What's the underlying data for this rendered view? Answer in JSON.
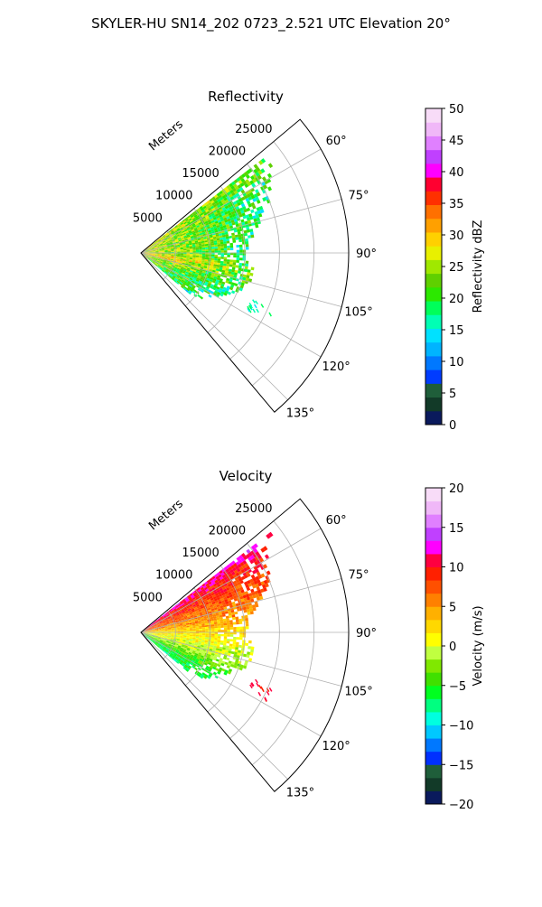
{
  "figure": {
    "suptitle": "SKYLER-HU  SN14_202  0723_2.521 UTC Elevation 20°"
  },
  "chart_data": [
    {
      "type": "heatmap",
      "subtype": "polar-sector",
      "title": "Reflectivity",
      "range_label": "Meters",
      "range_ticks": [
        5000,
        10000,
        15000,
        20000,
        25000
      ],
      "range_tick_labels": [
        "5000",
        "10000",
        "15000",
        "20000",
        "25000"
      ],
      "rlim": [
        0,
        30000
      ],
      "theta_range_deg": [
        50,
        140
      ],
      "theta_ticks_deg": [
        60,
        75,
        90,
        105,
        120,
        135
      ],
      "theta_tick_labels": [
        "60°",
        "75°",
        "90°",
        "105°",
        "120°",
        "135°"
      ],
      "grid": true,
      "colorbar": {
        "label": "Reflectivity dBZ",
        "min": 0,
        "max": 50,
        "ticks": [
          0,
          5,
          10,
          15,
          20,
          25,
          30,
          35,
          40,
          45,
          50
        ],
        "tick_labels": [
          "0",
          "5",
          "10",
          "15",
          "20",
          "25",
          "30",
          "35",
          "40",
          "45",
          "50"
        ],
        "colors": [
          "#0a1a5c",
          "#123a28",
          "#1f5e3a",
          "#003cff",
          "#0078ff",
          "#00b4ff",
          "#00e1ff",
          "#00ffb4",
          "#00ff5a",
          "#2ce800",
          "#5fd000",
          "#a0e800",
          "#e8f000",
          "#ffd000",
          "#ffa000",
          "#ff7000",
          "#ff3000",
          "#ff0030",
          "#ff00ff",
          "#c040ff",
          "#e080ff",
          "#f0b8f8",
          "#f8dcf8"
        ]
      },
      "returns": [
        {
          "az": 53,
          "r0": 0,
          "r1": 23500,
          "typical": 20
        },
        {
          "az": 57,
          "r0": 0,
          "r1": 22000,
          "typical": 19
        },
        {
          "az": 62,
          "r0": 0,
          "r1": 21000,
          "typical": 18
        },
        {
          "az": 70,
          "r0": 0,
          "r1": 19500,
          "typical": 18
        },
        {
          "az": 80,
          "r0": 0,
          "r1": 16500,
          "typical": 19
        },
        {
          "az": 90,
          "r0": 0,
          "r1": 15000,
          "typical": 18
        },
        {
          "az": 100,
          "r0": 0,
          "r1": 16500,
          "typical": 22
        },
        {
          "az": 110,
          "r0": 0,
          "r1": 15500,
          "typical": 18
        },
        {
          "az": 118,
          "r0": 0,
          "r1": 13000,
          "typical": 17
        },
        {
          "az": 125,
          "r0": 0,
          "r1": 11500,
          "typical": 17
        },
        {
          "az": 130,
          "r0": 0,
          "r1": 9000,
          "typical": 16
        }
      ]
    },
    {
      "type": "heatmap",
      "subtype": "polar-sector",
      "title": "Velocity",
      "range_label": "Meters",
      "range_ticks": [
        5000,
        10000,
        15000,
        20000,
        25000
      ],
      "range_tick_labels": [
        "5000",
        "10000",
        "15000",
        "20000",
        "25000"
      ],
      "rlim": [
        0,
        30000
      ],
      "theta_range_deg": [
        50,
        140
      ],
      "theta_ticks_deg": [
        60,
        75,
        90,
        105,
        120,
        135
      ],
      "theta_tick_labels": [
        "60°",
        "75°",
        "90°",
        "105°",
        "120°",
        "135°"
      ],
      "grid": true,
      "colorbar": {
        "label": "Velocity (m/s)",
        "min": -20,
        "max": 20,
        "ticks": [
          -20,
          -15,
          -10,
          -5,
          0,
          5,
          10,
          15,
          20
        ],
        "tick_labels": [
          "−20",
          "−15",
          "−10",
          "−5",
          "0",
          "5",
          "10",
          "15",
          "20"
        ],
        "colors": [
          "#0a1a5c",
          "#123a28",
          "#1f5e3a",
          "#0030ff",
          "#0078ff",
          "#00c8ff",
          "#00ffe0",
          "#00ff80",
          "#00ff20",
          "#40e000",
          "#80e800",
          "#c0ff40",
          "#ffff00",
          "#ffd800",
          "#ffb000",
          "#ff8000",
          "#ff5000",
          "#ff2000",
          "#ff0040",
          "#ff00ff",
          "#c040ff",
          "#e080ff",
          "#f0b8f8",
          "#f8dcf8"
        ]
      },
      "returns": [
        {
          "az": 53,
          "r0": 0,
          "r1": 23500,
          "typical": 12
        },
        {
          "az": 57,
          "r0": 0,
          "r1": 22000,
          "typical": 10
        },
        {
          "az": 62,
          "r0": 0,
          "r1": 21000,
          "typical": 9
        },
        {
          "az": 70,
          "r0": 0,
          "r1": 19500,
          "typical": 7
        },
        {
          "az": 80,
          "r0": 0,
          "r1": 16500,
          "typical": 5
        },
        {
          "az": 90,
          "r0": 0,
          "r1": 15000,
          "typical": 2
        },
        {
          "az": 100,
          "r0": 0,
          "r1": 16500,
          "typical": 0
        },
        {
          "az": 110,
          "r0": 0,
          "r1": 15500,
          "typical": -2
        },
        {
          "az": 118,
          "r0": 0,
          "r1": 13000,
          "typical": -5
        },
        {
          "az": 125,
          "r0": 0,
          "r1": 11500,
          "typical": -6
        },
        {
          "az": 130,
          "r0": 0,
          "r1": 9000,
          "typical": -7
        }
      ]
    }
  ]
}
